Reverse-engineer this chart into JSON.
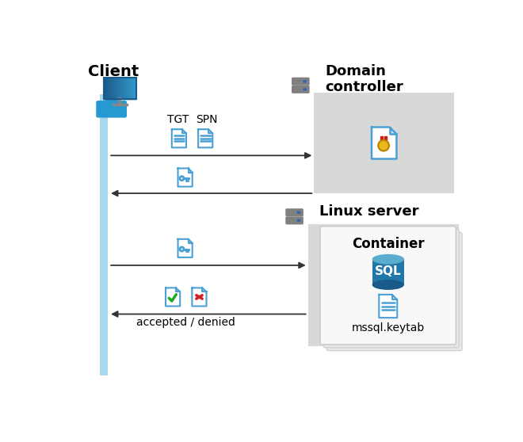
{
  "bg_color": "#ffffff",
  "client_label": "Client",
  "domain_label": "Domain\ncontroller",
  "linux_label": "Linux server",
  "container_label": "Container",
  "mssql_label": "mssql.keytab",
  "accepted_denied_label": "accepted / denied",
  "tgt_label": "TGT",
  "spn_label": "SPN",
  "bar_color": "#a8d8f0",
  "arrow_color": "#333333",
  "dc_box_color": "#d8d8d8",
  "linux_box_color": "#d8d8d8",
  "container_card_color": "#f8f8f8",
  "container_shadow_color": "#e0e0e0",
  "server_body_color": "#808080",
  "server_dot_color": "#3366aa",
  "doc_blue": "#3a8cc4",
  "doc_fill": "#ffffff",
  "doc_border": "#4a9fd4",
  "sql_dark": "#1a5a8a",
  "sql_mid": "#2277aa",
  "sql_top": "#5aadcc",
  "cert_yellow": "#e8b820",
  "cert_red": "#cc2010",
  "green_check": "#22aa22",
  "red_x": "#cc2222",
  "person_blue": "#2699d0",
  "monitor_dark": "#1a5a8a",
  "monitor_light": "#3399cc"
}
